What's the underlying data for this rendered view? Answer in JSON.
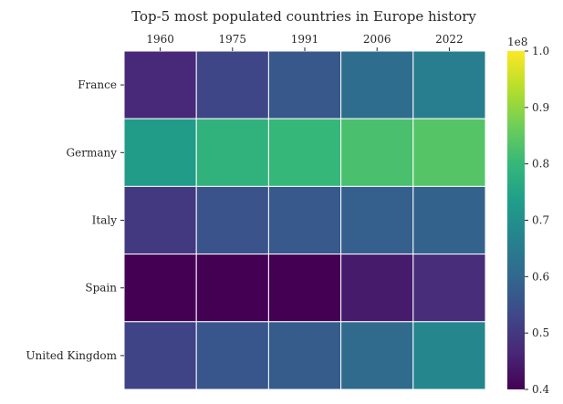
{
  "chart_data": {
    "type": "heatmap",
    "title": "Top-5 most populated countries in Europe history",
    "x_labels": [
      "1960",
      "1975",
      "1991",
      "2006",
      "2022"
    ],
    "y_labels": [
      "France",
      "Germany",
      "Italy",
      "Spain",
      "United Kingdom"
    ],
    "values": [
      [
        46.6,
        52.7,
        56.6,
        61.4,
        65.6
      ],
      [
        72.8,
        78.7,
        80.0,
        82.4,
        83.8
      ],
      [
        50.2,
        55.4,
        56.8,
        58.2,
        58.9
      ],
      [
        30.5,
        35.6,
        38.9,
        44.4,
        47.6
      ],
      [
        52.4,
        56.2,
        57.4,
        60.8,
        67.5
      ]
    ],
    "xlabel": "",
    "ylabel": "",
    "colorbar": {
      "min": 0.4,
      "max": 1.0,
      "ticks": [
        "0.4",
        "0.5",
        "0.6",
        "0.7",
        "0.8",
        "0.9",
        "1.0"
      ],
      "exponent_label": "1e8",
      "colormap": "viridis"
    },
    "cell_border_color": "#ffffff"
  }
}
